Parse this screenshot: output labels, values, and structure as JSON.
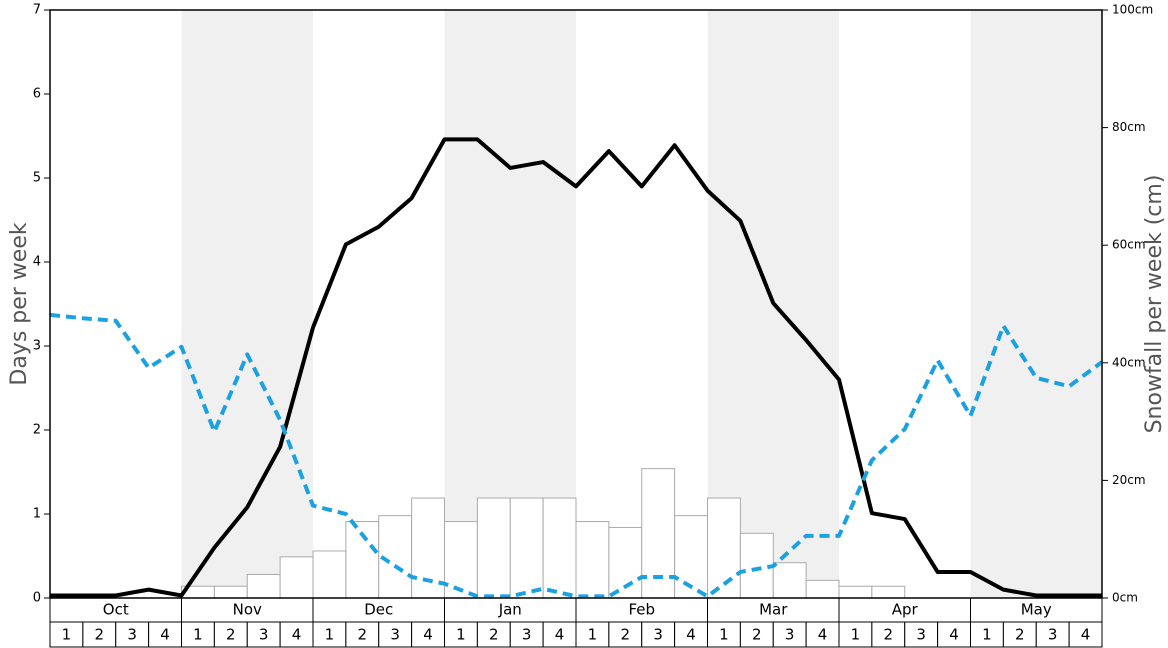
{
  "chart_data": {
    "type": "line",
    "ylabel": "Days per week",
    "y2label": "Snowfall per week (cm)",
    "months": [
      "Oct",
      "Nov",
      "Dec",
      "Jan",
      "Feb",
      "Mar",
      "Apr",
      "May"
    ],
    "categories": [
      1,
      2,
      3,
      4,
      1,
      2,
      3,
      4,
      1,
      2,
      3,
      4,
      1,
      2,
      3,
      4,
      1,
      2,
      3,
      4,
      1,
      2,
      3,
      4,
      1,
      2,
      3,
      4,
      1,
      2,
      3,
      4
    ],
    "x": [
      0,
      1,
      2,
      3,
      4,
      5,
      6,
      7,
      8,
      9,
      10,
      11,
      12,
      13,
      14,
      15,
      16,
      17,
      18,
      19,
      20,
      21,
      22,
      23,
      24,
      25,
      26,
      27,
      28,
      29,
      30,
      31,
      32
    ],
    "xlim": [
      0,
      32
    ],
    "ylim": [
      0,
      7
    ],
    "yticks": [
      0,
      1,
      2,
      3,
      4,
      5,
      6,
      7
    ],
    "y2lim": [
      0,
      100
    ],
    "y2ticks": [
      {
        "value": 0,
        "label": "0cm"
      },
      {
        "value": 20,
        "label": "20cm"
      },
      {
        "value": 40,
        "label": "40cm"
      },
      {
        "value": 60,
        "label": "60cm"
      },
      {
        "value": 80,
        "label": "80cm"
      },
      {
        "value": 100,
        "label": "100cm"
      }
    ],
    "band_color": "#f0f0f0",
    "series": [
      {
        "type": "bar",
        "axis": "y2",
        "color": "#ffffff",
        "stroke": "#aaaaaa",
        "values": [
          0,
          0,
          0,
          0,
          2,
          2,
          4,
          7,
          8,
          13,
          14,
          17,
          13,
          17,
          17,
          17,
          13,
          12,
          22,
          14,
          17,
          11,
          6,
          3,
          2,
          2,
          0,
          0,
          0,
          0,
          0,
          0
        ]
      },
      {
        "type": "line",
        "color": "#000000",
        "dashed": false,
        "values": [
          0.03,
          0.03,
          0.03,
          0.1,
          0.03,
          0.6,
          1.08,
          1.8,
          3.22,
          4.21,
          4.42,
          4.76,
          5.46,
          5.46,
          5.12,
          5.19,
          4.9,
          5.32,
          4.9,
          5.39,
          4.85,
          4.49,
          3.51,
          3.07,
          2.6,
          1.01,
          0.94,
          0.31,
          0.31,
          0.1,
          0.03,
          0.03,
          0.03
        ]
      },
      {
        "type": "line",
        "color": "#1ba1e2",
        "dashed": true,
        "values": [
          3.37,
          3.33,
          3.3,
          2.74,
          2.99,
          1.98,
          2.9,
          2.12,
          1.1,
          1.0,
          0.51,
          0.25,
          0.17,
          0.02,
          0.02,
          0.11,
          0.02,
          0.02,
          0.25,
          0.25,
          0.02,
          0.31,
          0.38,
          0.74,
          0.74,
          1.64,
          2.01,
          2.83,
          2.17,
          3.24,
          2.62,
          2.52,
          2.81
        ]
      }
    ]
  }
}
